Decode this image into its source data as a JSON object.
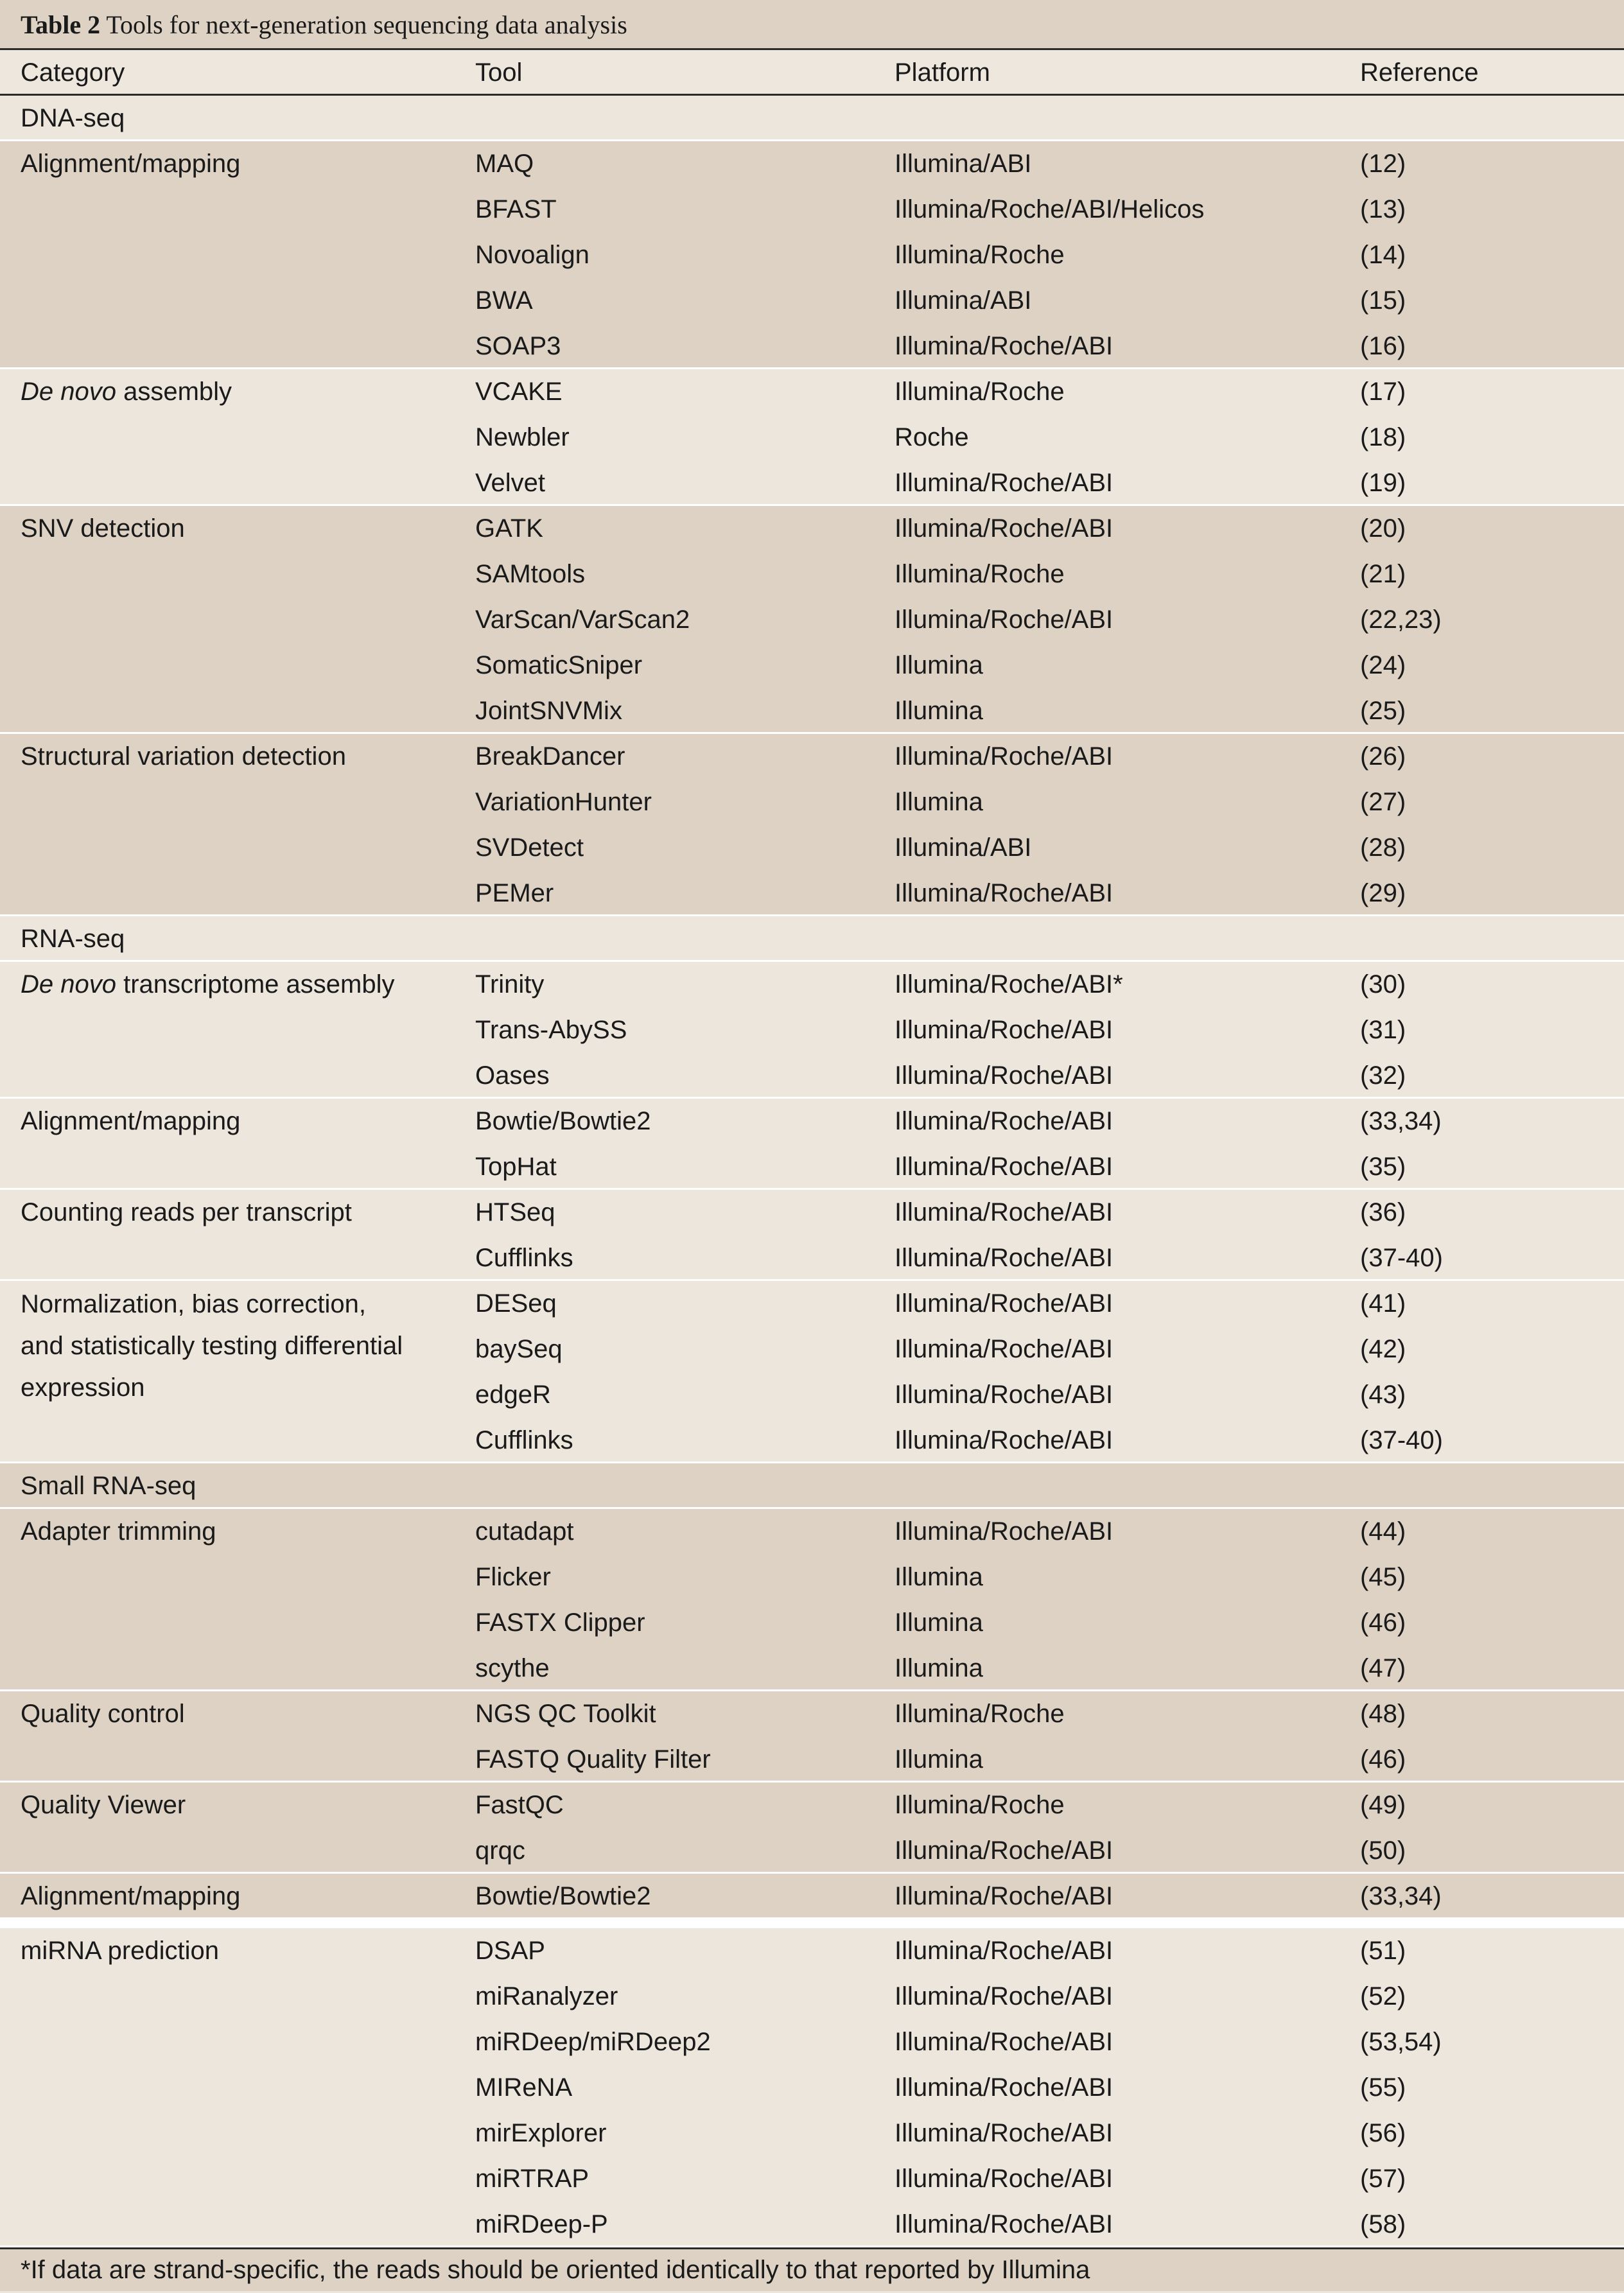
{
  "title": {
    "label": "Table 2",
    "text": "Tools for next-generation sequencing data analysis"
  },
  "headers": {
    "category": "Category",
    "tool": "Tool",
    "platform": "Platform",
    "reference": "Reference"
  },
  "groups": [
    {
      "band": "b",
      "section": "DNA-seq"
    },
    {
      "band": "a",
      "category": "Alignment/mapping",
      "rows": [
        [
          "MAQ",
          "Illumina/ABI",
          "(12)"
        ],
        [
          "BFAST",
          "Illumina/Roche/ABI/Helicos",
          "(13)"
        ],
        [
          "Novoalign",
          "Illumina/Roche",
          "(14)"
        ],
        [
          "BWA",
          "Illumina/ABI",
          "(15)"
        ],
        [
          "SOAP3",
          "Illumina/Roche/ABI",
          "(16)"
        ]
      ]
    },
    {
      "band": "b",
      "category_italic": "De novo",
      "category_rest": " assembly",
      "rows": [
        [
          "VCAKE",
          "Illumina/Roche",
          "(17)"
        ],
        [
          "Newbler",
          "Roche",
          "(18)"
        ],
        [
          "Velvet",
          "Illumina/Roche/ABI",
          "(19)"
        ]
      ]
    },
    {
      "band": "a",
      "category": "SNV detection",
      "rows": [
        [
          "GATK",
          "Illumina/Roche/ABI",
          "(20)"
        ],
        [
          "SAMtools",
          "Illumina/Roche",
          "(21)"
        ],
        [
          "VarScan/VarScan2",
          "Illumina/Roche/ABI",
          "(22,23)"
        ],
        [
          "SomaticSniper",
          "Illumina",
          "(24)"
        ],
        [
          "JointSNVMix",
          "Illumina",
          "(25)"
        ]
      ]
    },
    {
      "band": "a",
      "category": "Structural variation detection",
      "rows": [
        [
          "BreakDancer",
          "Illumina/Roche/ABI",
          "(26)"
        ],
        [
          "VariationHunter",
          "Illumina",
          "(27)"
        ],
        [
          "SVDetect",
          "Illumina/ABI",
          "(28)"
        ],
        [
          "PEMer",
          "Illumina/Roche/ABI",
          "(29)"
        ]
      ]
    },
    {
      "band": "b",
      "section": "RNA-seq"
    },
    {
      "band": "b",
      "category_italic": "De novo",
      "category_rest": " transcriptome assembly",
      "rows": [
        [
          "Trinity",
          "Illumina/Roche/ABI*",
          "(30)"
        ],
        [
          "Trans-AbySS",
          "Illumina/Roche/ABI",
          "(31)"
        ],
        [
          "Oases",
          "Illumina/Roche/ABI",
          "(32)"
        ]
      ]
    },
    {
      "band": "b",
      "category": "Alignment/mapping",
      "rows": [
        [
          "Bowtie/Bowtie2",
          "Illumina/Roche/ABI",
          "(33,34)"
        ],
        [
          "TopHat",
          "Illumina/Roche/ABI",
          "(35)"
        ]
      ]
    },
    {
      "band": "b",
      "category": "Counting reads per transcript",
      "rows": [
        [
          "HTSeq",
          "Illumina/Roche/ABI",
          "(36)"
        ],
        [
          "Cufflinks",
          "Illumina/Roche/ABI",
          "(37-40)"
        ]
      ]
    },
    {
      "band": "b",
      "category_lines": [
        "Normalization, bias correction,",
        "and statistically testing differential",
        "expression"
      ],
      "rows": [
        [
          "DESeq",
          "Illumina/Roche/ABI",
          "(41)"
        ],
        [
          "baySeq",
          "Illumina/Roche/ABI",
          "(42)"
        ],
        [
          "edgeR",
          "Illumina/Roche/ABI",
          "(43)"
        ],
        [
          "Cufflinks",
          "Illumina/Roche/ABI",
          "(37-40)"
        ]
      ]
    },
    {
      "band": "a",
      "section": "Small RNA-seq"
    },
    {
      "band": "a",
      "category": "Adapter trimming",
      "rows": [
        [
          "cutadapt",
          "Illumina/Roche/ABI",
          "(44)"
        ],
        [
          "Flicker",
          "Illumina",
          "(45)"
        ],
        [
          "FASTX Clipper",
          "Illumina",
          "(46)"
        ],
        [
          "scythe",
          "Illumina",
          "(47)"
        ]
      ]
    },
    {
      "band": "a",
      "category": "Quality control",
      "rows": [
        [
          "NGS QC Toolkit",
          "Illumina/Roche",
          "(48)"
        ],
        [
          "FASTQ Quality Filter",
          "Illumina",
          "(46)"
        ]
      ]
    },
    {
      "band": "a",
      "category": "Quality Viewer",
      "rows": [
        [
          "FastQC",
          "Illumina/Roche",
          "(49)"
        ],
        [
          "qrqc",
          "Illumina/Roche/ABI",
          "(50)"
        ]
      ]
    },
    {
      "band": "a",
      "category": "Alignment/mapping",
      "rows": [
        [
          "Bowtie/Bowtie2",
          "Illumina/Roche/ABI",
          "(33,34)"
        ]
      ]
    },
    {
      "band": "b",
      "category": "miRNA prediction",
      "gap_before": true,
      "rows": [
        [
          "DSAP",
          "Illumina/Roche/ABI",
          "(51)"
        ],
        [
          "miRanalyzer",
          "Illumina/Roche/ABI",
          "(52)"
        ],
        [
          "miRDeep/miRDeep2",
          "Illumina/Roche/ABI",
          "(53,54)"
        ],
        [
          "MIReNA",
          "Illumina/Roche/ABI",
          "(55)"
        ],
        [
          "mirExplorer",
          "Illumina/Roche/ABI",
          "(56)"
        ],
        [
          "miRTRAP",
          "Illumina/Roche/ABI",
          "(57)"
        ],
        [
          "miRDeep-P",
          "Illumina/Roche/ABI",
          "(58)"
        ]
      ]
    }
  ],
  "footnote": "*If data are strand-specific, the reads should be oriented identically to that reported by Illumina"
}
